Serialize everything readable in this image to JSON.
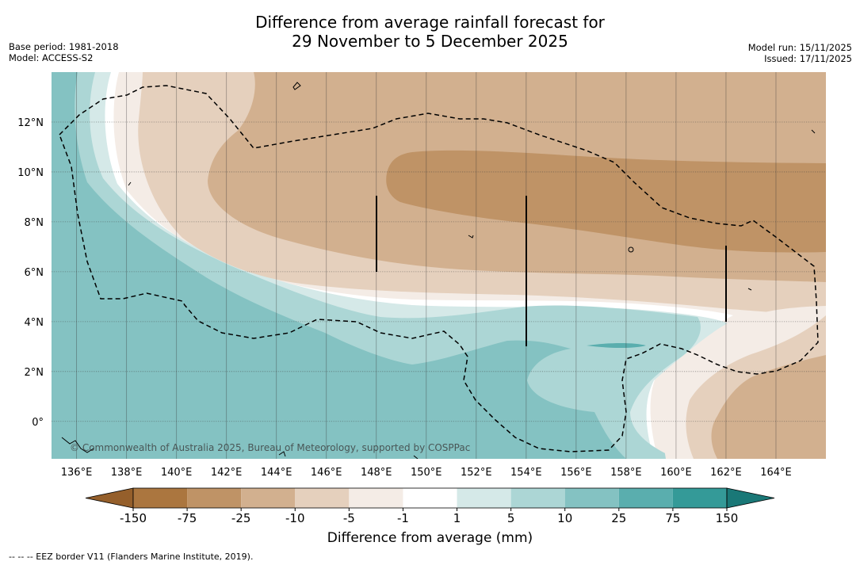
{
  "title": {
    "line1": "Difference from average rainfall forecast for",
    "line2": "29 November to 5 December 2025"
  },
  "meta": {
    "base_period": "Base period: 1981-2018",
    "model": "Model: ACCESS-S2",
    "model_run": "Model run: 15/11/2025",
    "issued": "Issued: 17/11/2025"
  },
  "map": {
    "copyright": "© Commonwealth of Australia 2025, Bureau of Meteorology, supported by COSPPac",
    "lon_labels": [
      "136°E",
      "138°E",
      "140°E",
      "142°E",
      "144°E",
      "146°E",
      "148°E",
      "150°E",
      "152°E",
      "154°E",
      "156°E",
      "158°E",
      "160°E",
      "162°E",
      "164°E"
    ],
    "lon_values": [
      136,
      138,
      140,
      142,
      144,
      146,
      148,
      150,
      152,
      154,
      156,
      158,
      160,
      162,
      164
    ],
    "lat_labels": [
      "12°N",
      "10°N",
      "8°N",
      "6°N",
      "4°N",
      "2°N",
      "0°"
    ],
    "lat_values": [
      12,
      10,
      8,
      6,
      4,
      2,
      0
    ],
    "lon_range": [
      135.0,
      166.0
    ],
    "lat_range": [
      -1.5,
      14.0
    ]
  },
  "colorbar": {
    "title": "Difference from average (mm)",
    "tick_labels": [
      "-150",
      "-75",
      "-25",
      "-10",
      "-5",
      "-1",
      "1",
      "5",
      "10",
      "25",
      "75",
      "150"
    ],
    "colors": [
      "#ab763f",
      "#bf9366",
      "#d2b08f",
      "#e5d0bd",
      "#f4ece6",
      "#ffffff",
      "#d5e9e8",
      "#acd6d5",
      "#84c2c2",
      "#5aaeae",
      "#349a98"
    ],
    "under_color": "#955f2b",
    "over_color": "#1a7877"
  },
  "footer": "-- -- -- EEZ border V11 (Flanders Marine Institute, 2019)."
}
